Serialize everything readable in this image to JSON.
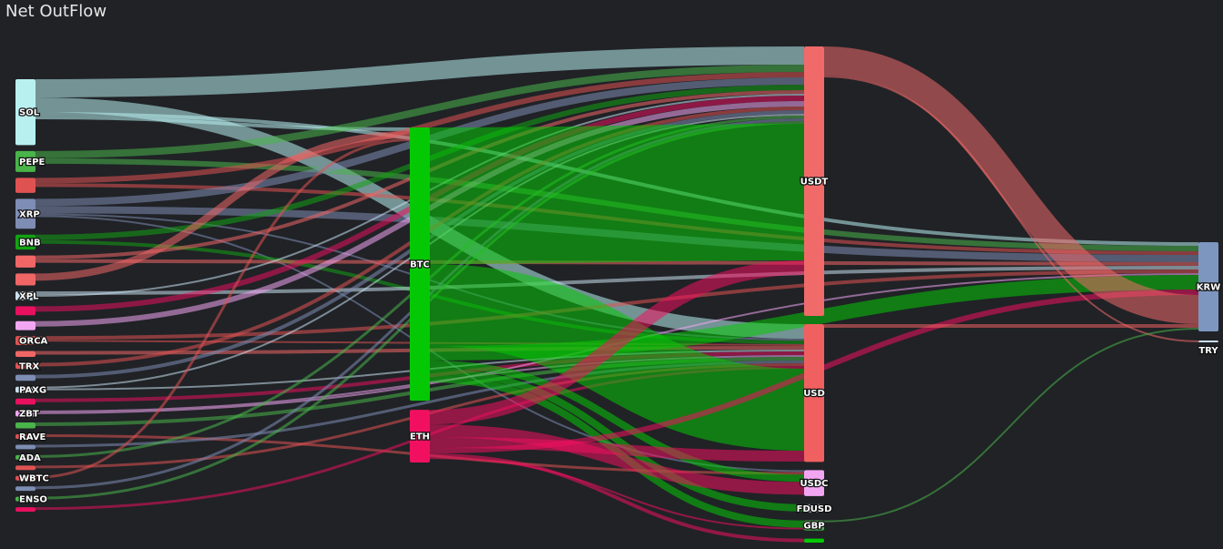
{
  "title": "Net OutFlow",
  "chart_data": {
    "type": "sankey",
    "title": "Net OutFlow",
    "nodes": [
      {
        "id": "SOL",
        "label": "SOL",
        "column": 0,
        "value": 22,
        "color": "#b8f0f0"
      },
      {
        "id": "PEPE",
        "label": "PEPE",
        "column": 0,
        "value": 7,
        "color": "#49b449"
      },
      {
        "id": "N3",
        "label": "",
        "column": 0,
        "value": 5,
        "color": "#e05252"
      },
      {
        "id": "XRP",
        "label": "XRP",
        "column": 0,
        "value": 10,
        "color": "#7d8db3"
      },
      {
        "id": "BNB",
        "label": "BNB",
        "column": 0,
        "value": 5,
        "color": "#12a312"
      },
      {
        "id": "N6",
        "label": "",
        "column": 0,
        "value": 4,
        "color": "#f06666"
      },
      {
        "id": "N7",
        "label": "",
        "column": 0,
        "value": 4,
        "color": "#f06666"
      },
      {
        "id": "XPL",
        "label": "XPL",
        "column": 0,
        "value": 3,
        "color": "#c9e0ee"
      },
      {
        "id": "N9",
        "label": "",
        "column": 0,
        "value": 3,
        "color": "#e8105f"
      },
      {
        "id": "N10",
        "label": "",
        "column": 0,
        "value": 3,
        "color": "#f2a6f2"
      },
      {
        "id": "ORCA",
        "label": "ORCA",
        "column": 0,
        "value": 3,
        "color": "#e05252"
      },
      {
        "id": "N12",
        "label": "",
        "column": 0,
        "value": 2,
        "color": "#f06666"
      },
      {
        "id": "TRX",
        "label": "TRX",
        "column": 0,
        "value": 2,
        "color": "#e05252"
      },
      {
        "id": "N14",
        "label": "",
        "column": 0,
        "value": 2,
        "color": "#7d8db3"
      },
      {
        "id": "PAXG",
        "label": "PAXG",
        "column": 0,
        "value": 2,
        "color": "#c9e0ee"
      },
      {
        "id": "N16",
        "label": "",
        "column": 0,
        "value": 2,
        "color": "#e8105f"
      },
      {
        "id": "ZBT",
        "label": "ZBT",
        "column": 0,
        "value": 2,
        "color": "#f2a6f2"
      },
      {
        "id": "N18",
        "label": "",
        "column": 0,
        "value": 2,
        "color": "#49b449"
      },
      {
        "id": "RAVE",
        "label": "RAVE",
        "column": 0,
        "value": 1.5,
        "color": "#e05252"
      },
      {
        "id": "N20",
        "label": "",
        "column": 0,
        "value": 1.5,
        "color": "#7d8db3"
      },
      {
        "id": "ADA",
        "label": "ADA",
        "column": 0,
        "value": 1.5,
        "color": "#49b449"
      },
      {
        "id": "N22",
        "label": "",
        "column": 0,
        "value": 1.5,
        "color": "#e05252"
      },
      {
        "id": "WBTC",
        "label": "WBTC",
        "column": 0,
        "value": 1.5,
        "color": "#e05252"
      },
      {
        "id": "N24",
        "label": "",
        "column": 0,
        "value": 1.5,
        "color": "#7d8db3"
      },
      {
        "id": "ENSO",
        "label": "ENSO",
        "column": 0,
        "value": 1.5,
        "color": "#49b449"
      },
      {
        "id": "N26",
        "label": "",
        "column": 0,
        "value": 1.5,
        "color": "#e8105f"
      },
      {
        "id": "BTC",
        "label": "BTC",
        "column": 1,
        "value": 140,
        "color": "#05c805"
      },
      {
        "id": "ETH",
        "label": "ETH",
        "column": 1,
        "value": 27,
        "color": "#f0105f"
      },
      {
        "id": "USDT",
        "label": "USDT",
        "column": 2,
        "value": 135,
        "color": "#f06a6a"
      },
      {
        "id": "USD",
        "label": "USD",
        "column": 2,
        "value": 69,
        "color": "#f06060"
      },
      {
        "id": "USDC",
        "label": "USDC",
        "column": 2,
        "value": 13,
        "color": "#f2a6f2"
      },
      {
        "id": "FDUSD",
        "label": "FDUSD",
        "column": 2,
        "value": 4,
        "color": "#c9e0ee"
      },
      {
        "id": "GBP",
        "label": "GBP",
        "column": 2,
        "value": 5,
        "color": "#49b449"
      },
      {
        "id": "N34",
        "label": "",
        "column": 2,
        "value": 2,
        "color": "#05c805"
      },
      {
        "id": "KRW",
        "label": "KRW",
        "column": 3,
        "value": 48,
        "color": "#7d96c0"
      },
      {
        "id": "TRY",
        "label": "TRY",
        "column": 3,
        "value": 1,
        "color": "#c9e0ee"
      }
    ],
    "links": [
      {
        "source": "SOL",
        "target": "USDT",
        "value": 10
      },
      {
        "source": "SOL",
        "target": "USD",
        "value": 8
      },
      {
        "source": "SOL",
        "target": "KRW",
        "value": 2
      },
      {
        "source": "SOL",
        "target": "BTC",
        "value": 2
      },
      {
        "source": "PEPE",
        "target": "USDT",
        "value": 4
      },
      {
        "source": "PEPE",
        "target": "KRW",
        "value": 3
      },
      {
        "source": "N3",
        "target": "USDT",
        "value": 3
      },
      {
        "source": "N3",
        "target": "KRW",
        "value": 2
      },
      {
        "source": "XRP",
        "target": "USDT",
        "value": 4
      },
      {
        "source": "XRP",
        "target": "KRW",
        "value": 4
      },
      {
        "source": "XRP",
        "target": "USD",
        "value": 1
      },
      {
        "source": "XRP",
        "target": "USDC",
        "value": 1
      },
      {
        "source": "BNB",
        "target": "USDT",
        "value": 3
      },
      {
        "source": "BNB",
        "target": "USD",
        "value": 2
      },
      {
        "source": "N6",
        "target": "USDT",
        "value": 2
      },
      {
        "source": "N6",
        "target": "KRW",
        "value": 2
      },
      {
        "source": "N7",
        "target": "BTC",
        "value": 4
      },
      {
        "source": "XPL",
        "target": "KRW",
        "value": 2
      },
      {
        "source": "XPL",
        "target": "USDT",
        "value": 1
      },
      {
        "source": "N9",
        "target": "USDT",
        "value": 3
      },
      {
        "source": "N10",
        "target": "USDT",
        "value": 3
      },
      {
        "source": "ORCA",
        "target": "KRW",
        "value": 2
      },
      {
        "source": "ORCA",
        "target": "USD",
        "value": 1
      },
      {
        "source": "N12",
        "target": "USD",
        "value": 2
      },
      {
        "source": "TRX",
        "target": "USDT",
        "value": 2
      },
      {
        "source": "N14",
        "target": "USDT",
        "value": 2
      },
      {
        "source": "PAXG",
        "target": "USDT",
        "value": 1
      },
      {
        "source": "PAXG",
        "target": "USD",
        "value": 1
      },
      {
        "source": "N16",
        "target": "USD",
        "value": 2
      },
      {
        "source": "ZBT",
        "target": "USD",
        "value": 1
      },
      {
        "source": "ZBT",
        "target": "KRW",
        "value": 1
      },
      {
        "source": "N18",
        "target": "USD",
        "value": 2
      },
      {
        "source": "RAVE",
        "target": "USDC",
        "value": 1.5
      },
      {
        "source": "N20",
        "target": "USD",
        "value": 1.5
      },
      {
        "source": "ADA",
        "target": "USDT",
        "value": 1.5
      },
      {
        "source": "N22",
        "target": "USD",
        "value": 1.5
      },
      {
        "source": "WBTC",
        "target": "BTC",
        "value": 1.5
      },
      {
        "source": "N24",
        "target": "USDT",
        "value": 1.5
      },
      {
        "source": "ENSO",
        "target": "USDT",
        "value": 1.5
      },
      {
        "source": "N26",
        "target": "USD",
        "value": 1.5
      },
      {
        "source": "BTC",
        "target": "USDT",
        "value": 75
      },
      {
        "source": "BTC",
        "target": "USD",
        "value": 45
      },
      {
        "source": "BTC",
        "target": "KRW",
        "value": 8
      },
      {
        "source": "BTC",
        "target": "USDC",
        "value": 4
      },
      {
        "source": "BTC",
        "target": "FDUSD",
        "value": 4
      },
      {
        "source": "BTC",
        "target": "GBP",
        "value": 4
      },
      {
        "source": "ETH",
        "target": "USDT",
        "value": 8
      },
      {
        "source": "ETH",
        "target": "USDC",
        "value": 7
      },
      {
        "source": "ETH",
        "target": "USD",
        "value": 6
      },
      {
        "source": "ETH",
        "target": "KRW",
        "value": 3
      },
      {
        "source": "ETH",
        "target": "N34",
        "value": 2
      },
      {
        "source": "ETH",
        "target": "GBP",
        "value": 1
      },
      {
        "source": "USDT",
        "target": "KRW",
        "value": 16
      },
      {
        "source": "USDT",
        "target": "TRY",
        "value": 1
      },
      {
        "source": "USD",
        "target": "KRW",
        "value": 2
      },
      {
        "source": "GBP",
        "target": "KRW",
        "value": 1
      }
    ]
  }
}
